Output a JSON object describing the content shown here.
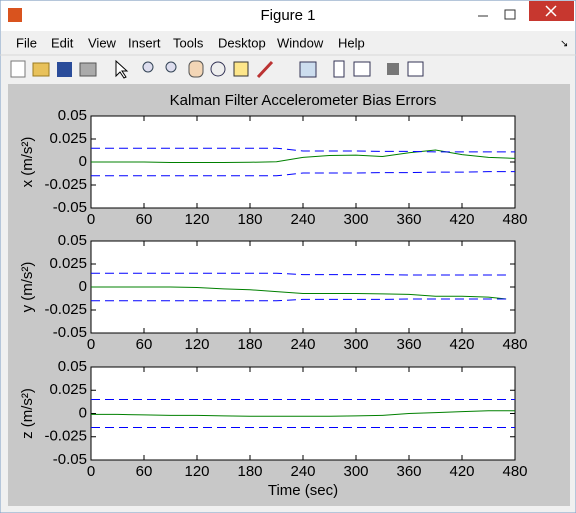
{
  "window": {
    "title": "Figure 1",
    "menu": [
      "File",
      "Edit",
      "View",
      "Insert",
      "Tools",
      "Desktop",
      "Window",
      "Help"
    ]
  },
  "chart_data": [
    {
      "type": "line",
      "title": "Kalman Filter Accelerometer Bias Errors",
      "ylabel": "x (m/s²)",
      "x": [
        0,
        30,
        60,
        90,
        120,
        150,
        180,
        210,
        240,
        270,
        300,
        330,
        360,
        390,
        420,
        450,
        480
      ],
      "series": [
        {
          "color": "#008000",
          "style": "solid",
          "values": [
            0,
            0,
            0,
            -0.0005,
            -0.0005,
            -0.0005,
            -0.0003,
            0.0003,
            0.005,
            0.007,
            0.0075,
            0.006,
            0.01,
            0.013,
            0.008,
            0.005,
            0.004
          ]
        },
        {
          "color": "#0000ff",
          "style": "dashed",
          "values": [
            0.015,
            0.015,
            0.015,
            0.015,
            0.015,
            0.015,
            0.015,
            0.015,
            0.012,
            0.012,
            0.012,
            0.0115,
            0.0115,
            0.011,
            0.011,
            0.011,
            0.011
          ]
        },
        {
          "color": "#0000ff",
          "style": "dashed",
          "values": [
            -0.015,
            -0.015,
            -0.015,
            -0.015,
            -0.015,
            -0.015,
            -0.015,
            -0.015,
            -0.012,
            -0.012,
            -0.012,
            -0.0115,
            -0.0115,
            -0.011,
            -0.011,
            -0.0105,
            -0.0105
          ]
        }
      ],
      "xlim": [
        0,
        480
      ],
      "xticks": [
        0,
        60,
        120,
        180,
        240,
        300,
        360,
        420,
        480
      ],
      "ylim": [
        -0.05,
        0.05
      ],
      "yticks": [
        -0.05,
        -0.025,
        0,
        0.025,
        0.05
      ]
    },
    {
      "type": "line",
      "ylabel": "y (m/s²)",
      "x": [
        0,
        30,
        60,
        90,
        120,
        150,
        180,
        210,
        240,
        270,
        300,
        330,
        360,
        390,
        420,
        450,
        470
      ],
      "series": [
        {
          "color": "#008000",
          "style": "solid",
          "values": [
            0,
            0,
            0,
            0,
            -0.0005,
            -0.002,
            -0.003,
            -0.005,
            -0.007,
            -0.007,
            -0.007,
            -0.0075,
            -0.008,
            -0.01,
            -0.01,
            -0.011,
            -0.013
          ]
        },
        {
          "color": "#0000ff",
          "style": "dashed",
          "values": [
            0.015,
            0.015,
            0.015,
            0.015,
            0.015,
            0.015,
            0.015,
            0.015,
            0.0135,
            0.0135,
            0.0135,
            0.0135,
            0.013,
            0.013,
            0.013,
            0.013,
            0.013
          ]
        },
        {
          "color": "#0000ff",
          "style": "dashed",
          "values": [
            -0.015,
            -0.015,
            -0.015,
            -0.015,
            -0.015,
            -0.015,
            -0.015,
            -0.015,
            -0.0135,
            -0.0135,
            -0.0135,
            -0.0135,
            -0.013,
            -0.013,
            -0.013,
            -0.013,
            -0.013
          ]
        }
      ],
      "xlim": [
        0,
        480
      ],
      "xticks": [
        0,
        60,
        120,
        180,
        240,
        300,
        360,
        420,
        480
      ],
      "ylim": [
        -0.05,
        0.05
      ],
      "yticks": [
        -0.05,
        -0.025,
        0,
        0.025,
        0.05
      ]
    },
    {
      "type": "line",
      "ylabel": "z (m/s²)",
      "xlabel": "Time (sec)",
      "x": [
        0,
        30,
        60,
        90,
        120,
        150,
        180,
        210,
        240,
        270,
        300,
        330,
        360,
        390,
        420,
        450,
        480
      ],
      "series": [
        {
          "color": "#008000",
          "style": "solid",
          "values": [
            -0.001,
            -0.001,
            -0.0015,
            -0.002,
            -0.002,
            -0.0025,
            -0.003,
            -0.003,
            -0.003,
            -0.003,
            -0.0025,
            -0.002,
            0,
            0.001,
            0.002,
            0.003,
            0.003
          ]
        },
        {
          "color": "#0000ff",
          "style": "dashed",
          "values": [
            0.015,
            0.015,
            0.015,
            0.015,
            0.015,
            0.015,
            0.015,
            0.015,
            0.015,
            0.015,
            0.015,
            0.015,
            0.015,
            0.015,
            0.015,
            0.015,
            0.015
          ]
        },
        {
          "color": "#0000ff",
          "style": "dashed",
          "values": [
            -0.015,
            -0.015,
            -0.015,
            -0.015,
            -0.015,
            -0.015,
            -0.015,
            -0.015,
            -0.015,
            -0.015,
            -0.015,
            -0.015,
            -0.015,
            -0.015,
            -0.015,
            -0.015,
            -0.015
          ]
        }
      ],
      "xlim": [
        0,
        480
      ],
      "xticks": [
        0,
        60,
        120,
        180,
        240,
        300,
        360,
        420,
        480
      ],
      "ylim": [
        -0.05,
        0.05
      ],
      "yticks": [
        -0.05,
        -0.025,
        0,
        0.025,
        0.05
      ]
    }
  ]
}
